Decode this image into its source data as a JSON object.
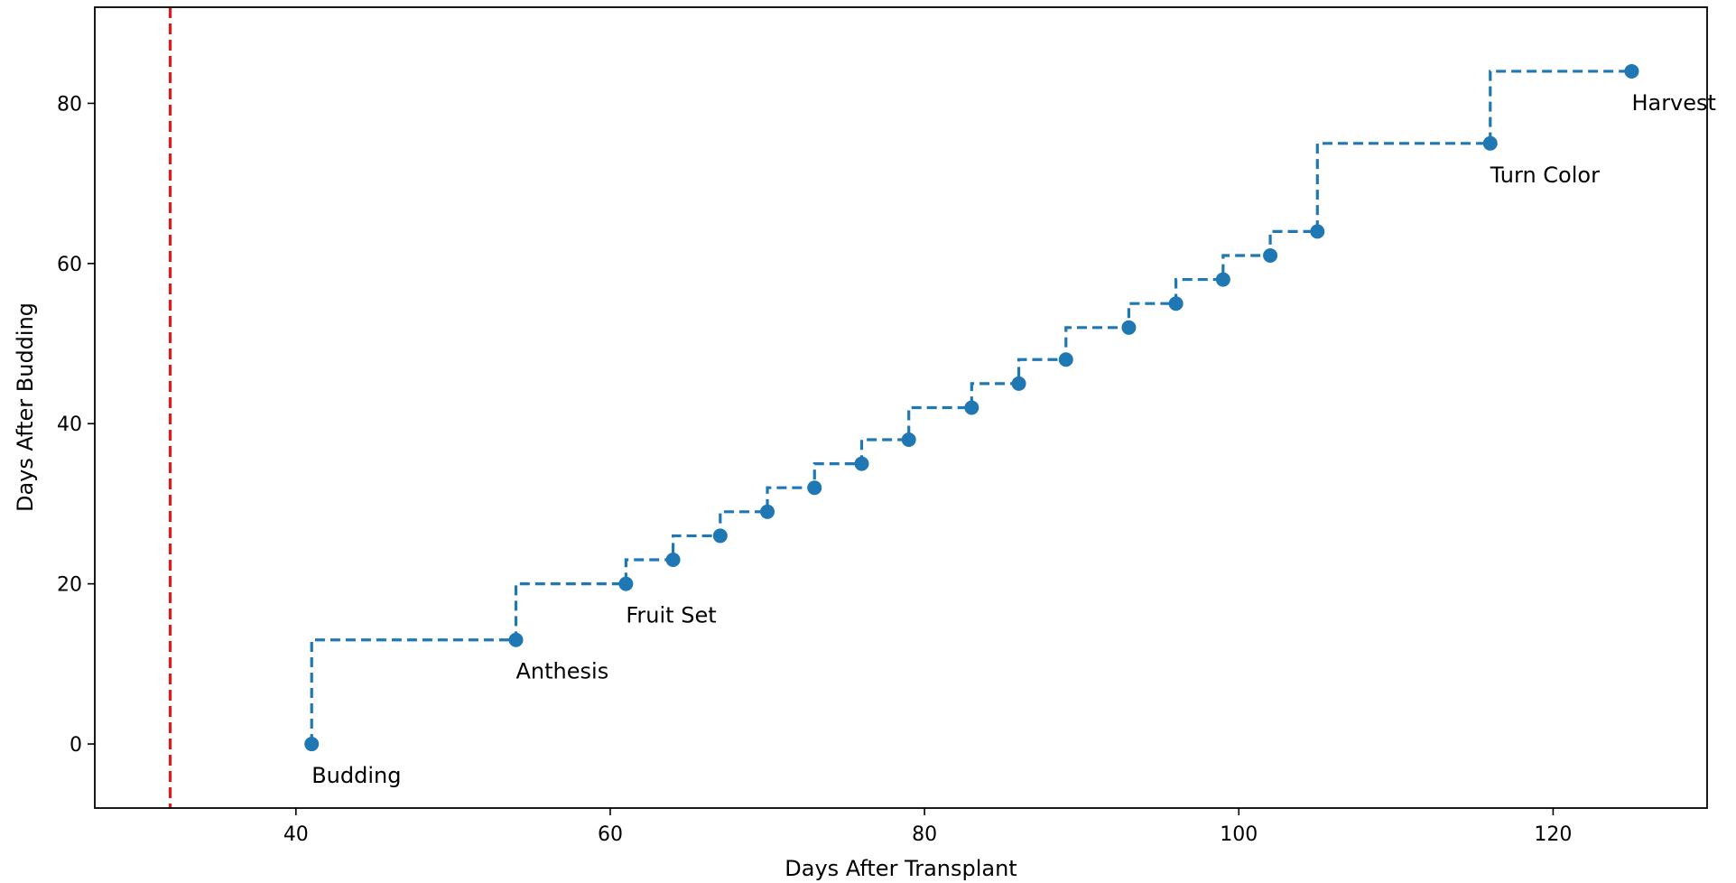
{
  "chart_data": {
    "type": "line",
    "title": "",
    "xlabel": "Days After Transplant",
    "ylabel": "Days After Budding",
    "xlim": [
      27.2,
      129.8
    ],
    "ylim": [
      -8,
      92
    ],
    "xticks": [
      40,
      60,
      80,
      100,
      120
    ],
    "yticks": [
      0,
      20,
      40,
      60,
      80
    ],
    "grid": false,
    "legend": "none",
    "step_where": "pre",
    "colors": {
      "series": "#1f77b4",
      "reference_line": "#e31a1c"
    },
    "reference_line": {
      "axis": "x",
      "value": 32,
      "style": "dashed"
    },
    "series": [
      {
        "x": [
          41,
          54,
          61,
          64,
          67,
          70,
          73,
          76,
          79,
          83,
          86,
          89,
          93,
          96,
          99,
          102,
          105,
          116,
          125
        ],
        "y": [
          0,
          13,
          20,
          23,
          26,
          29,
          32,
          35,
          38,
          42,
          45,
          48,
          52,
          55,
          58,
          61,
          64,
          75,
          84
        ]
      }
    ],
    "annotations": [
      {
        "text": "Budding",
        "x": 41,
        "y": 0
      },
      {
        "text": "Anthesis",
        "x": 54,
        "y": 13
      },
      {
        "text": "Fruit Set",
        "x": 61,
        "y": 20
      },
      {
        "text": "Turn Color",
        "x": 116,
        "y": 75
      },
      {
        "text": "Harvest",
        "x": 125,
        "y": 84
      }
    ]
  }
}
